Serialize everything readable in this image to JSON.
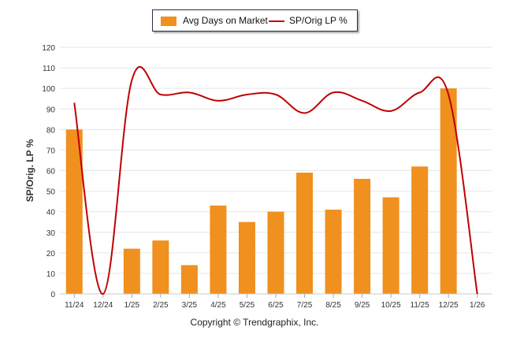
{
  "chart_data": {
    "type": "bar+line",
    "categories": [
      "11/24",
      "12/24",
      "1/25",
      "2/25",
      "3/25",
      "4/25",
      "5/25",
      "6/25",
      "7/25",
      "8/25",
      "9/25",
      "10/25",
      "11/25",
      "12/25",
      "1/26"
    ],
    "series": [
      {
        "name": "Avg Days on Market",
        "type": "bar",
        "values": [
          80,
          0,
          22,
          26,
          14,
          43,
          35,
          40,
          59,
          41,
          56,
          47,
          62,
          100,
          0
        ],
        "color": "#f0901e"
      },
      {
        "name": "SP/Orig LP %",
        "type": "line",
        "values": [
          93,
          0,
          104,
          97,
          98,
          94,
          97,
          97,
          88,
          98,
          94,
          89,
          98,
          97,
          0
        ],
        "color": "#c00000"
      }
    ],
    "ylabel": "SP/Orig. LP %",
    "ylim": [
      0,
      120
    ],
    "yticks": [
      0,
      10,
      20,
      30,
      40,
      50,
      60,
      70,
      80,
      90,
      100,
      110,
      120
    ],
    "grid": true,
    "legend_position": "top-center"
  },
  "legend": {
    "bar_label": "Avg Days on Market",
    "line_label": "SP/Orig LP %"
  },
  "footer": {
    "copyright": "Copyright © Trendgraphix, Inc."
  }
}
